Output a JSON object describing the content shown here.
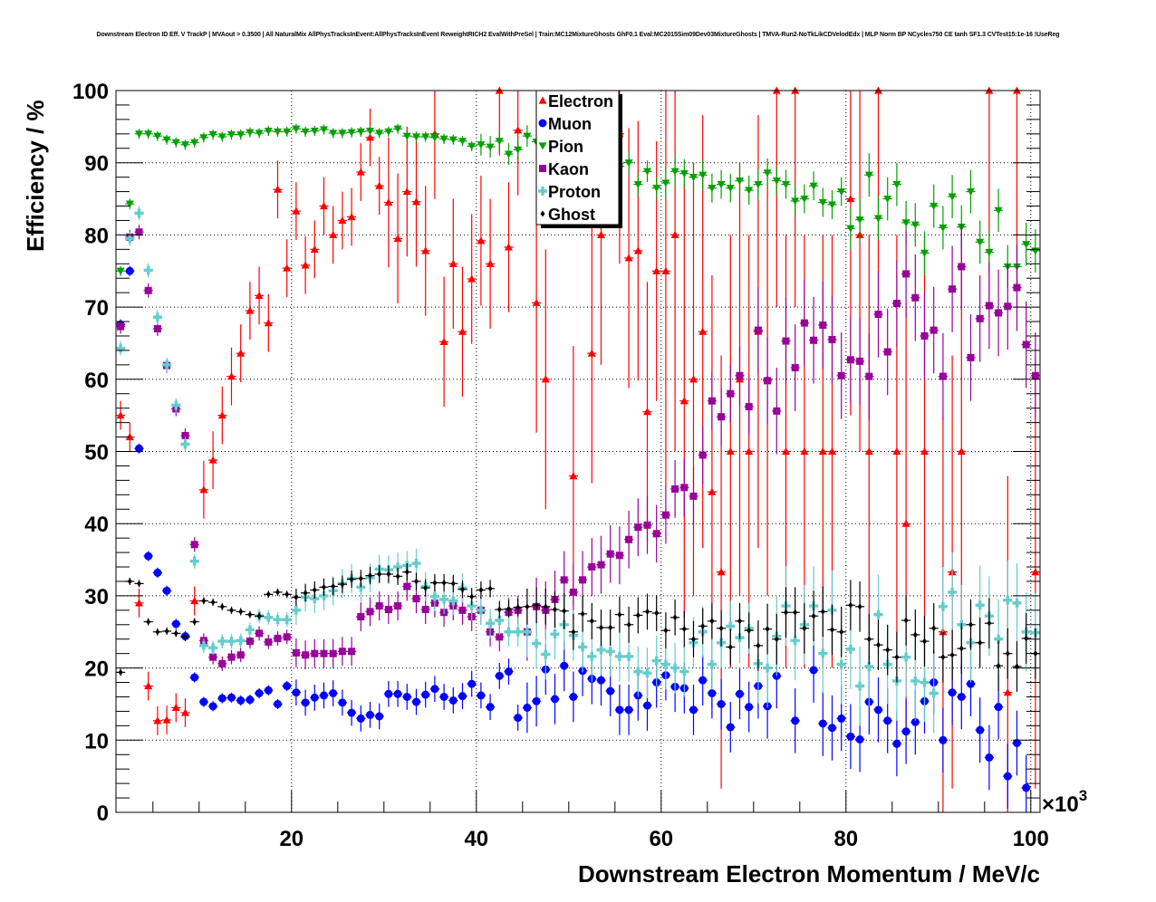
{
  "chart_data": {
    "type": "scatter",
    "title": "Downstream Electron ID Eff. V TrackP | MVAout > 0.3500 | All NaturalMix AllPhysTracksInEvent:AllPhysTracksInEvent ReweightRICH2 EvalWithPreSel | Train:MC12MixtureGhosts GhF0.1 Eval:MC2015Sim09Dev03MixtureGhosts | TMVA-Run2-NoTkLikCDVelodEdx | MLP Norm BP NCycles750 CE tanh SF1.3 CVTest15:1e-16 !UseReg",
    "xlabel": "Downstream Electron Momentum / MeV/c",
    "ylabel": "Efficiency / %",
    "x_multiplier": "×10",
    "x_multiplier_exp": "3",
    "xlim": [
      1,
      101
    ],
    "ylim": [
      0,
      100
    ],
    "x_bin_start": 1.5,
    "x_bin_step": 1,
    "xticks": [
      20,
      40,
      60,
      80,
      100
    ],
    "yticks": [
      0,
      10,
      20,
      30,
      40,
      50,
      60,
      70,
      80,
      90,
      100
    ],
    "grid": true,
    "legend_position": "top-center",
    "series": [
      {
        "name": "Electron",
        "color": "#ff0000",
        "marker": "triangle-up",
        "values": [
          55,
          52,
          29,
          17.5,
          12.7,
          12.8,
          14.5,
          13.8,
          29.3,
          44.7,
          48.8,
          55,
          60.4,
          63.6,
          69.5,
          71.6,
          67.8,
          86.3,
          75.4,
          83.3,
          75.8,
          78,
          84,
          80,
          82,
          82.5,
          88.7,
          93.5,
          86.8,
          84.5,
          79.5,
          86,
          84.6,
          77.8,
          94,
          65.2,
          76,
          66.6,
          73.9,
          79.2,
          76,
          100,
          78.3,
          94.5,
          null,
          70.6,
          60,
          null,
          null,
          46.6,
          null,
          63.6,
          80,
          null,
          94,
          76.8,
          77.8,
          55.5,
          75,
          75,
          80,
          57,
          60,
          66.6,
          44.4,
          33.3,
          50,
          60,
          50,
          66.6,
          60,
          100,
          50,
          100,
          50,
          null,
          50,
          50,
          null,
          85,
          80,
          50,
          100,
          null,
          50,
          40,
          null,
          50,
          null,
          25,
          33.3,
          50,
          null,
          null,
          100,
          null,
          16.6,
          100,
          null,
          33.3
        ],
        "err_ranges": [
          [
            1,
            10,
            2
          ],
          [
            10,
            30,
            4
          ],
          [
            30,
            45,
            9
          ],
          [
            45,
            60,
            18
          ],
          [
            60,
            101,
            30
          ]
        ]
      },
      {
        "name": "Muon",
        "color": "#0000ff",
        "marker": "circle",
        "values": [
          67.6,
          75,
          50.4,
          35.5,
          33.2,
          30.7,
          26.1,
          24.4,
          18.7,
          15.3,
          14.7,
          15.8,
          15.9,
          15.5,
          15.6,
          16.5,
          16.9,
          15,
          17.5,
          16.6,
          15.2,
          15.9,
          16.2,
          16.5,
          15.2,
          13.8,
          13,
          13.5,
          13.3,
          16.4,
          16.4,
          16,
          15.3,
          16.3,
          17.1,
          16,
          15.5,
          16.1,
          17.8,
          16.2,
          14.6,
          18.9,
          19.5,
          13.1,
          14.5,
          15.4,
          19.8,
          15.7,
          20.3,
          16,
          19.6,
          18.5,
          18.3,
          16.8,
          14.2,
          14.2,
          16.2,
          14.8,
          18,
          19,
          17.4,
          17.2,
          14.2,
          18.3,
          16.5,
          15,
          11.8,
          16.4,
          14.6,
          17.5,
          14.7,
          18.9,
          null,
          12.7,
          null,
          19.7,
          12.3,
          11.7,
          13,
          10.5,
          10.1,
          15.3,
          14.2,
          12.7,
          9.5,
          11.2,
          12.5,
          15.4,
          18,
          10,
          16.6,
          16,
          17.8,
          11.4,
          7.6,
          14.6,
          5,
          9.6,
          3.4,
          null
        ],
        "err_ranges": [
          [
            1,
            20,
            0.7
          ],
          [
            20,
            45,
            1.8
          ],
          [
            45,
            70,
            3.5
          ],
          [
            70,
            101,
            4.5
          ]
        ]
      },
      {
        "name": "Pion",
        "color": "#00a000",
        "marker": "triangle-down",
        "values": [
          75,
          84.3,
          94,
          94,
          93.7,
          93.2,
          92.8,
          92.5,
          92.8,
          93.5,
          93.9,
          93.6,
          93.9,
          93.9,
          94.2,
          94.1,
          94.4,
          94.3,
          94.3,
          94.7,
          94.3,
          94.4,
          94.6,
          94.1,
          94.1,
          94.2,
          94.3,
          94.4,
          94.1,
          94.3,
          94.7,
          93.7,
          93.6,
          93.6,
          93.5,
          93.3,
          93.2,
          93,
          92.3,
          92.5,
          92.2,
          93,
          91.2,
          91.8,
          93.7,
          92.9,
          92.5,
          92,
          92.8,
          92.2,
          91.5,
          91.2,
          90.8,
          90.5,
          89.5,
          90,
          87,
          88.8,
          86.5,
          87.2,
          88.8,
          88.5,
          88,
          88.3,
          86.5,
          87,
          86.5,
          87.5,
          86.2,
          87,
          88.6,
          87.5,
          87,
          84.7,
          85,
          86.8,
          84.5,
          84.2,
          86,
          80.9,
          82.1,
          88.3,
          82.3,
          85,
          87,
          81.7,
          81.4,
          77.5,
          84,
          81,
          85.3,
          81.1,
          86,
          79,
          77.6,
          83.4,
          75.6,
          75.6,
          78.7,
          77.8
        ],
        "err_ranges": [
          [
            1,
            40,
            0.7
          ],
          [
            40,
            60,
            1.5
          ],
          [
            60,
            80,
            2
          ],
          [
            80,
            101,
            3
          ]
        ]
      },
      {
        "name": "Kaon",
        "color": "#990099",
        "marker": "square",
        "values": [
          67.3,
          79.7,
          80.4,
          72.3,
          67,
          61.9,
          55.9,
          52.2,
          37.1,
          23.8,
          21.5,
          20.6,
          21.5,
          21.8,
          23.7,
          24.8,
          23.6,
          24.1,
          24.3,
          22.1,
          21.8,
          22,
          22,
          22,
          22.3,
          22.3,
          27.1,
          27.8,
          28.6,
          28.1,
          28.6,
          31.3,
          29.6,
          28.1,
          29,
          27.7,
          28.6,
          28,
          27.1,
          28,
          25,
          24.3,
          27.7,
          28,
          25,
          28.5,
          28,
          29.5,
          32.2,
          30.5,
          32.2,
          34,
          34.3,
          35.8,
          35.6,
          37.8,
          39.5,
          39.8,
          38.6,
          41.2,
          44.8,
          45,
          43.8,
          49.5,
          57,
          54.8,
          58,
          60.5,
          56.2,
          66.8,
          59.8,
          55.6,
          65.3,
          61.6,
          67.8,
          65.4,
          67.5,
          65.5,
          60.5,
          62.7,
          62.5,
          60.4,
          69,
          63.8,
          70.5,
          74.6,
          71.3,
          66,
          66.8,
          60.4,
          72.5,
          75.6,
          63,
          68.4,
          70.2,
          69.2,
          70.1,
          72.7,
          64.8,
          60.5
        ],
        "err_ranges": [
          [
            1,
            20,
            1
          ],
          [
            20,
            45,
            2
          ],
          [
            45,
            70,
            4
          ],
          [
            70,
            101,
            6
          ]
        ]
      },
      {
        "name": "Proton",
        "color": "#66cccc",
        "marker": "cross",
        "values": [
          64.3,
          79.5,
          83,
          75.1,
          68.6,
          62,
          56.4,
          51,
          34.8,
          23.1,
          22.8,
          23.7,
          23.7,
          23.8,
          25.3,
          27.2,
          27,
          26.7,
          26.7,
          28,
          29.8,
          29.6,
          30,
          30.7,
          31.7,
          32.4,
          31.2,
          32.5,
          33.7,
          33.6,
          34,
          34.2,
          34.5,
          31.3,
          29.9,
          29.5,
          29.3,
          31.1,
          28.6,
          28,
          26.2,
          26.6,
          25,
          25,
          25,
          23.4,
          21.9,
          24.7,
          26,
          24.5,
          22.9,
          21.6,
          22.5,
          22.3,
          21.6,
          21.6,
          19.5,
          19.3,
          21,
          20.5,
          20,
          19.5,
          23.5,
          25,
          20.5,
          23.5,
          25.8,
          24.2,
          25.5,
          20.6,
          20,
          24.4,
          28.6,
          23.8,
          26,
          28.6,
          22,
          28,
          20.5,
          22.6,
          17.5,
          20.2,
          27.4,
          20.5,
          18.2,
          21.5,
          18.2,
          18,
          16.5,
          28.5,
          30.5,
          26,
          23.5,
          28.7,
          27.2,
          24,
          29.4,
          29,
          25,
          24.9
        ],
        "err_ranges": [
          [
            1,
            20,
            1
          ],
          [
            20,
            45,
            2
          ],
          [
            45,
            70,
            3.5
          ],
          [
            70,
            101,
            5.5
          ]
        ]
      },
      {
        "name": "Ghost",
        "color": "#000000",
        "marker": "diamond",
        "values": [
          19.4,
          32,
          31.7,
          26.4,
          25,
          25.1,
          24.8,
          24.3,
          26.4,
          29.3,
          29.1,
          28.5,
          28,
          27.8,
          27.4,
          27.2,
          30.2,
          30.5,
          30.2,
          29.8,
          30.4,
          30.8,
          31.2,
          31.3,
          31.6,
          32.3,
          32.4,
          32.8,
          33,
          33,
          32.7,
          33.3,
          32,
          31.1,
          31.8,
          31.8,
          31.7,
          30.9,
          29.9,
          30.8,
          31,
          28.1,
          28.2,
          28.4,
          28.5,
          28.7,
          28.5,
          28.1,
          27.9,
          25,
          27.5,
          26.5,
          25.6,
          25.6,
          27.4,
          26,
          27.3,
          27.8,
          27.6,
          25.2,
          27,
          25.4,
          24,
          25.8,
          26.5,
          25.5,
          22.9,
          26.5,
          25.2,
          23.1,
          25.4,
          24,
          27.7,
          27.7,
          25.5,
          27.2,
          27.8,
          25.3,
          25,
          28.7,
          28.5,
          24,
          23.2,
          22.5,
          21.5,
          26.6,
          24.6,
          23.7,
          25.5,
          21.5,
          21.8,
          22.7,
          26,
          23.5,
          26.2,
          20.3,
          22,
          20.2,
          24.1,
          22
        ],
        "err_ranges": [
          [
            1,
            20,
            0.5
          ],
          [
            20,
            45,
            1.2
          ],
          [
            45,
            70,
            2.5
          ],
          [
            70,
            101,
            3.5
          ]
        ]
      }
    ]
  }
}
